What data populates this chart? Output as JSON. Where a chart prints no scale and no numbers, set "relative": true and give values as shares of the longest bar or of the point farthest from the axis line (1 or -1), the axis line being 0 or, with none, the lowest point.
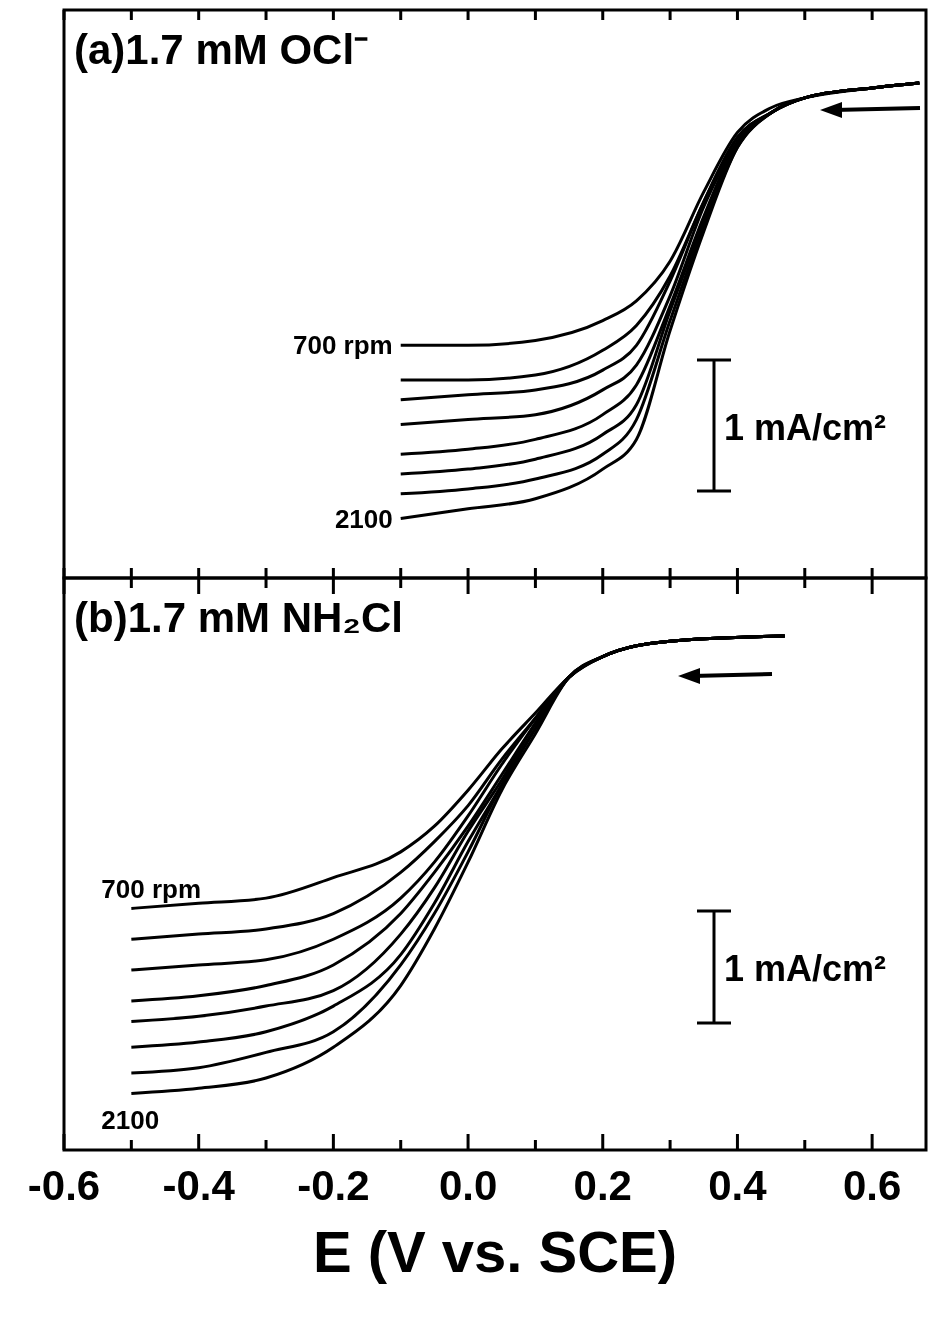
{
  "chart_data": [
    {
      "type": "line",
      "title": "(a)1.7 mM OCl⁻",
      "relative": true,
      "tick_labels": false,
      "legend": false,
      "marker": "none",
      "line_style": "solid",
      "annotations": [
        "1 mA/cm²"
      ],
      "xlim": [
        -0.6,
        0.68
      ],
      "xticks": [
        {
          "value": -0.6,
          "label": null
        },
        {
          "value": -0.5,
          "label": null
        },
        {
          "value": -0.4,
          "label": null
        },
        {
          "value": -0.3,
          "label": null
        },
        {
          "value": -0.2,
          "label": null
        },
        {
          "value": -0.1,
          "label": null
        },
        {
          "value": 0,
          "label": null
        },
        {
          "value": 0.1,
          "label": null
        },
        {
          "value": 0.2,
          "label": null
        },
        {
          "value": 0.3,
          "label": null
        },
        {
          "value": 0.4,
          "label": null
        },
        {
          "value": 0.5,
          "label": null
        },
        {
          "value": 0.6,
          "label": null
        }
      ],
      "x": [
        -0.1,
        0.0,
        0.1,
        0.2,
        0.25,
        0.3,
        0.35,
        0.4,
        0.45,
        0.5,
        0.6,
        0.67
      ],
      "series": [
        {
          "name": "700 rpm",
          "color": "#000000",
          "values": [
            0.47,
            0.47,
            0.48,
            0.52,
            0.56,
            0.64,
            0.78,
            0.9,
            0.95,
            0.97,
            0.99,
            1.0
          ]
        },
        {
          "color": "#000000",
          "values": [
            0.4,
            0.4,
            0.41,
            0.46,
            0.51,
            0.61,
            0.76,
            0.89,
            0.94,
            0.97,
            0.99,
            1.0
          ]
        },
        {
          "color": "#000000",
          "values": [
            0.36,
            0.37,
            0.38,
            0.42,
            0.47,
            0.6,
            0.76,
            0.89,
            0.94,
            0.97,
            0.99,
            1.0
          ]
        },
        {
          "color": "#000000",
          "values": [
            0.31,
            0.32,
            0.33,
            0.38,
            0.43,
            0.57,
            0.75,
            0.88,
            0.94,
            0.97,
            0.99,
            1.0
          ]
        },
        {
          "color": "#000000",
          "values": [
            0.25,
            0.26,
            0.28,
            0.33,
            0.39,
            0.55,
            0.73,
            0.88,
            0.94,
            0.97,
            0.99,
            1.0
          ]
        },
        {
          "color": "#000000",
          "values": [
            0.21,
            0.22,
            0.24,
            0.29,
            0.35,
            0.54,
            0.72,
            0.88,
            0.94,
            0.97,
            0.99,
            1.0
          ]
        },
        {
          "color": "#000000",
          "values": [
            0.17,
            0.18,
            0.2,
            0.25,
            0.32,
            0.52,
            0.71,
            0.87,
            0.94,
            0.97,
            0.99,
            1.0
          ]
        },
        {
          "name": "2100",
          "color": "#000000",
          "values": [
            0.12,
            0.14,
            0.16,
            0.22,
            0.28,
            0.5,
            0.7,
            0.87,
            0.94,
            0.97,
            0.99,
            1.0
          ]
        }
      ]
    },
    {
      "type": "line",
      "title": "(b)1.7 mM NH₂Cl",
      "xlabel": "E (V vs. SCE)",
      "relative": true,
      "tick_labels": "x",
      "legend": false,
      "marker": "none",
      "line_style": "solid",
      "annotations": [
        "1 mA/cm²"
      ],
      "xlim": [
        -0.6,
        0.68
      ],
      "xticks": [
        -0.6,
        {
          "value": -0.5,
          "label": null
        },
        -0.4,
        {
          "value": -0.3,
          "label": null
        },
        -0.2,
        {
          "value": -0.1,
          "label": null
        },
        {
          "value": 0,
          "label": "0.0"
        },
        {
          "value": 0.1,
          "label": null
        },
        0.2,
        {
          "value": 0.3,
          "label": null
        },
        0.4,
        {
          "value": 0.5,
          "label": null
        },
        0.6
      ],
      "x": [
        -0.5,
        -0.4,
        -0.3,
        -0.2,
        -0.1,
        -0.05,
        0.0,
        0.05,
        0.1,
        0.15,
        0.2,
        0.3,
        0.47
      ],
      "series": [
        {
          "name": "700 rpm",
          "color": "#000000",
          "values": [
            0.47,
            0.48,
            0.49,
            0.53,
            0.58,
            0.63,
            0.7,
            0.78,
            0.85,
            0.92,
            0.96,
            0.99,
            1.0
          ]
        },
        {
          "color": "#000000",
          "values": [
            0.41,
            0.42,
            0.43,
            0.46,
            0.54,
            0.6,
            0.67,
            0.76,
            0.84,
            0.92,
            0.96,
            0.99,
            1.0
          ]
        },
        {
          "color": "#000000",
          "values": [
            0.35,
            0.36,
            0.37,
            0.41,
            0.49,
            0.56,
            0.65,
            0.75,
            0.84,
            0.92,
            0.96,
            0.99,
            1.0
          ]
        },
        {
          "color": "#000000",
          "values": [
            0.29,
            0.3,
            0.32,
            0.36,
            0.46,
            0.54,
            0.63,
            0.73,
            0.83,
            0.92,
            0.96,
            0.99,
            1.0
          ]
        },
        {
          "color": "#000000",
          "values": [
            0.25,
            0.26,
            0.28,
            0.31,
            0.42,
            0.51,
            0.62,
            0.72,
            0.83,
            0.92,
            0.96,
            0.99,
            1.0
          ]
        },
        {
          "color": "#000000",
          "values": [
            0.2,
            0.21,
            0.23,
            0.28,
            0.38,
            0.48,
            0.6,
            0.71,
            0.82,
            0.92,
            0.96,
            0.99,
            1.0
          ]
        },
        {
          "color": "#000000",
          "values": [
            0.15,
            0.16,
            0.19,
            0.23,
            0.36,
            0.46,
            0.58,
            0.71,
            0.82,
            0.92,
            0.96,
            0.99,
            1.0
          ]
        },
        {
          "name": "2100",
          "color": "#000000",
          "values": [
            0.11,
            0.12,
            0.14,
            0.2,
            0.32,
            0.43,
            0.56,
            0.7,
            0.81,
            0.92,
            0.96,
            0.99,
            1.0
          ]
        }
      ]
    }
  ]
}
